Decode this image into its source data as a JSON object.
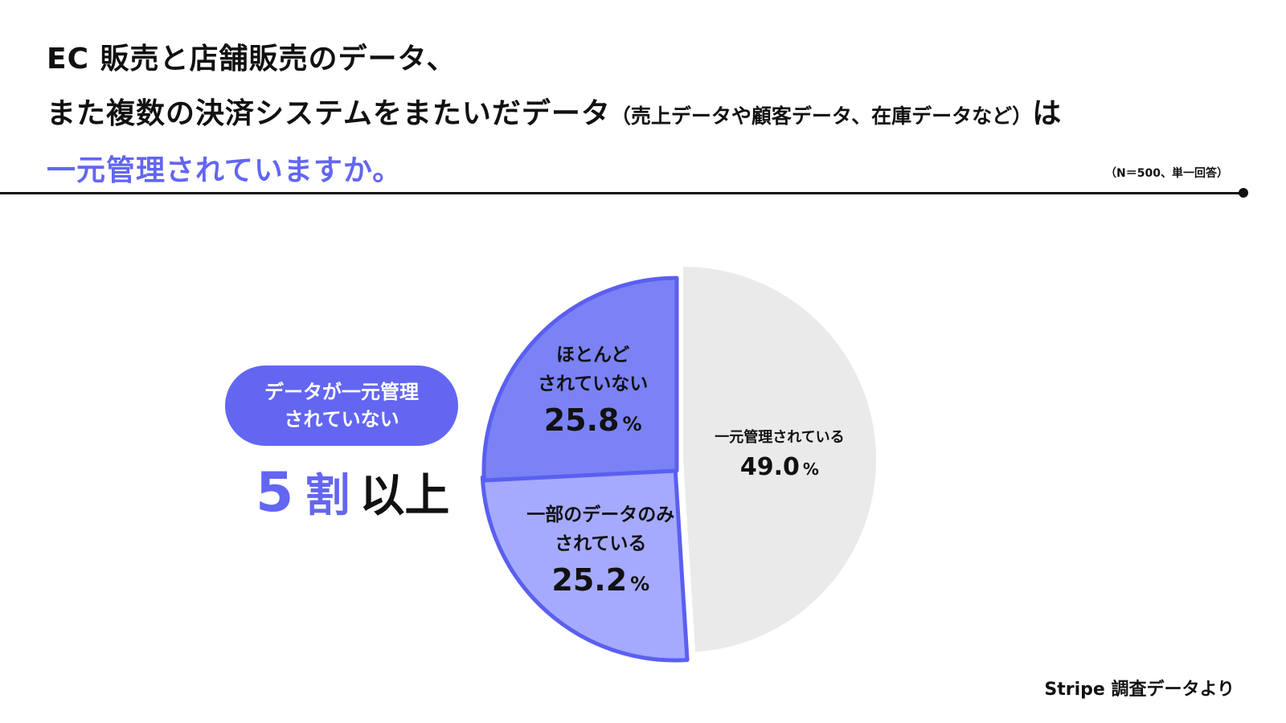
{
  "title": {
    "line1": "EC 販売と店舗販売のデータ、",
    "line2_main": "また複数の決済システムをまたいだデータ",
    "line2_paren": "（売上データや顧客データ、在庫データなど）",
    "line2_end": "は",
    "line3_accent": "一元管理されていますか。"
  },
  "sample_note": "（N＝500、単一回答）",
  "callout": {
    "pill_line1": "データが一元管理",
    "pill_line2": "されていない",
    "big_number": "5",
    "big_unit": "割",
    "big_suffix": "以上"
  },
  "source": "Stripe 調査データより",
  "colors": {
    "accent": "#6366f1",
    "slice_most_not": "#7b82f5",
    "slice_partial": "#a5aaff",
    "slice_managed": "#ebeaea",
    "outline": "#5b5ff0"
  },
  "chart_data": {
    "type": "pie",
    "unit": "%",
    "slices": [
      {
        "label_line1": "一元管理されている",
        "label_line2": "",
        "value": 49.0,
        "value_text": "49.0"
      },
      {
        "label_line1": "一部のデータのみ",
        "label_line2": "されている",
        "value": 25.2,
        "value_text": "25.2"
      },
      {
        "label_line1": "ほとんど",
        "label_line2": "されていない",
        "value": 25.8,
        "value_text": "25.8"
      }
    ]
  }
}
